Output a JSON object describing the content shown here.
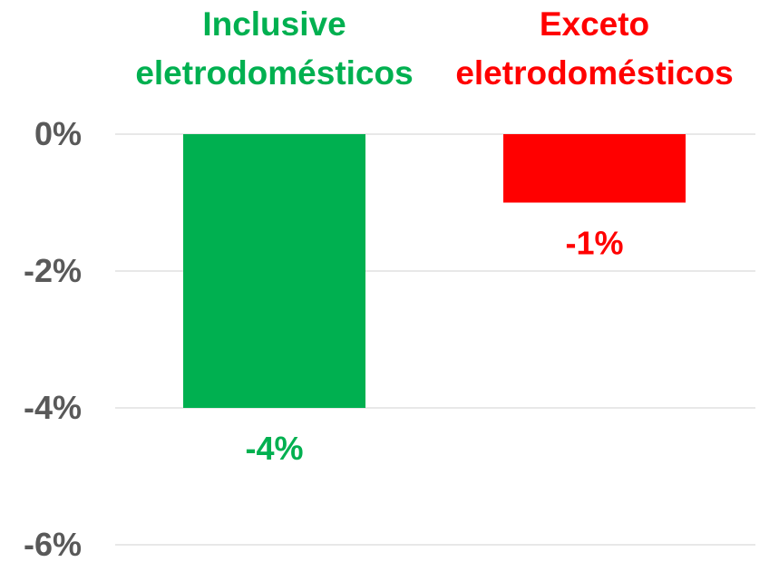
{
  "chart_data": {
    "type": "bar",
    "categories": [
      {
        "line1": "Inclusive",
        "line2": "eletrodomésticos"
      },
      {
        "line1": "Exceto",
        "line2": "eletrodomésticos"
      }
    ],
    "values": [
      -4,
      -1
    ],
    "data_labels": [
      "-4%",
      "-1%"
    ],
    "colors": [
      "#00b050",
      "#ff0000"
    ],
    "yticks": [
      {
        "value": 0,
        "label": "0%"
      },
      {
        "value": -2,
        "label": "-2%"
      },
      {
        "value": -4,
        "label": "-4%"
      },
      {
        "value": -6,
        "label": "-6%"
      }
    ],
    "ylim": [
      -6,
      0
    ],
    "xlabel": "",
    "ylabel": "",
    "grid": true,
    "legend": false,
    "category_labels_position": "top"
  }
}
